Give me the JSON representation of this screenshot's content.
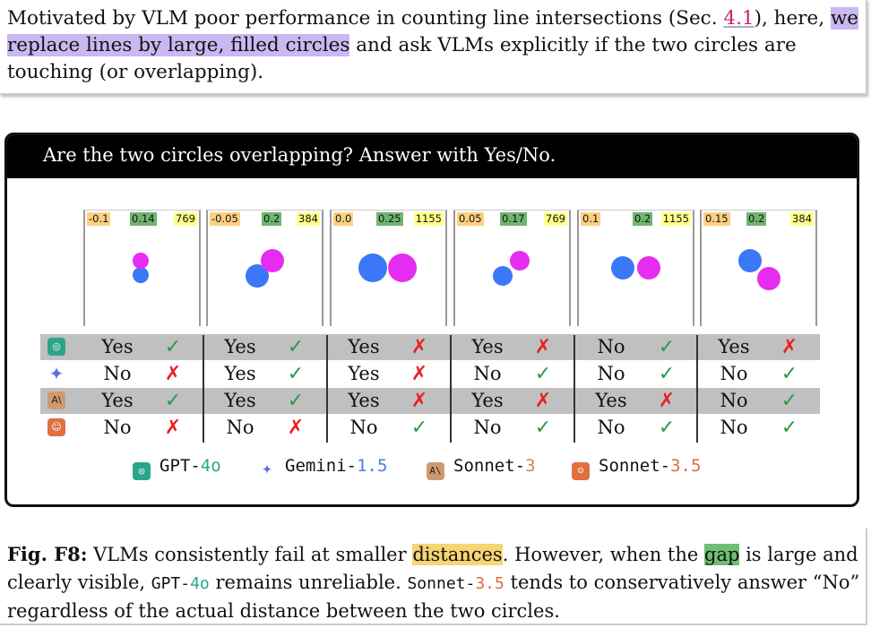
{
  "intro": {
    "before": "Motivated by VLM poor performance in counting line intersections (Sec. ",
    "ref": "4.1",
    "after_ref": "), here, ",
    "highlight": "we replace lines by large, filled circles",
    "after": " and ask VLMs explicitly if the two circles are touching (or overlapping)."
  },
  "figure": {
    "prompt": "Are the two circles overlapping? Answer with Yes/No.",
    "panels": [
      {
        "distance": "-0.1",
        "size": "0.14",
        "resolution": "769"
      },
      {
        "distance": "-0.05",
        "size": "0.2",
        "resolution": "384"
      },
      {
        "distance": "0.0",
        "size": "0.25",
        "resolution": "1155"
      },
      {
        "distance": "0.05",
        "size": "0.17",
        "resolution": "769"
      },
      {
        "distance": "0.1",
        "size": "0.2",
        "resolution": "1155"
      },
      {
        "distance": "0.15",
        "size": "0.2",
        "resolution": "384"
      }
    ],
    "models": [
      {
        "name": "GPT-4o",
        "answers": [
          "Yes",
          "Yes",
          "Yes",
          "Yes",
          "No",
          "Yes"
        ],
        "correct": [
          true,
          true,
          false,
          false,
          true,
          false
        ]
      },
      {
        "name": "Gemini-1.5",
        "answers": [
          "No",
          "Yes",
          "Yes",
          "No",
          "No",
          "No"
        ],
        "correct": [
          false,
          true,
          false,
          true,
          true,
          true
        ]
      },
      {
        "name": "Sonnet-3",
        "answers": [
          "Yes",
          "Yes",
          "Yes",
          "Yes",
          "Yes",
          "No"
        ],
        "correct": [
          true,
          true,
          false,
          false,
          false,
          true
        ]
      },
      {
        "name": "Sonnet-3.5",
        "answers": [
          "No",
          "No",
          "No",
          "No",
          "No",
          "No"
        ],
        "correct": [
          false,
          false,
          true,
          true,
          true,
          true
        ]
      }
    ],
    "legend": [
      {
        "base": "GPT-",
        "ver": "4o",
        "color": "#2aa58a"
      },
      {
        "base": "Gemini-",
        "ver": "1.5",
        "color": "#4a7de0"
      },
      {
        "base": "Sonnet-",
        "ver": "3",
        "color": "#d08a5a"
      },
      {
        "base": "Sonnet-",
        "ver": "3.5",
        "color": "#e06a40"
      }
    ],
    "colors": {
      "blue": "#3b78f7",
      "magenta": "#e62cf0",
      "check": "#2a9a4a",
      "cross": "#e82020"
    }
  },
  "caption": {
    "label": "Fig. F8:",
    "t1": " VLMs consistently fail at smaller ",
    "hl1": "distances",
    "t2": ". However, when the ",
    "hl2": "gap",
    "t3": " is large and clearly visible, ",
    "m1a": "GPT-",
    "m1b": "4o",
    "t4": " remains unreliable. ",
    "m2a": "Sonnet-",
    "m2b": "3.5",
    "t5": " tends to conservatively answer “No” regardless of the actual distance between the two circles."
  }
}
